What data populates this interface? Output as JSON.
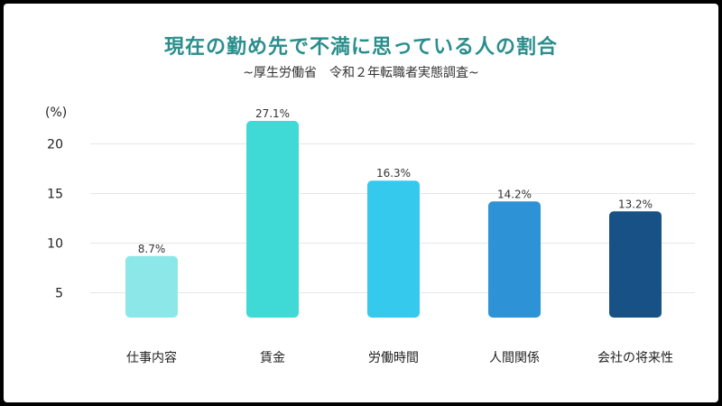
{
  "chart_data": {
    "type": "bar",
    "title": "現在の勤め先で不満に思っている人の割合",
    "subtitle": "~厚生労働省　令和２年転職者実態調査~",
    "ylabel": "(%)",
    "ylim": [
      2.5,
      22.5
    ],
    "yticks": [
      5,
      10,
      15,
      20
    ],
    "grid": true,
    "categories": [
      "仕事内容",
      "賃金",
      "労働時間",
      "人間関係",
      "会社の将来性"
    ],
    "values": [
      8.7,
      27.1,
      16.3,
      14.2,
      13.2
    ],
    "data_labels": [
      "8.7%",
      "27.1%",
      "16.3%",
      "14.2%",
      "13.2%"
    ],
    "colors": [
      "#8ce8e8",
      "#3fd9d6",
      "#36c9ee",
      "#2e92d6",
      "#175185"
    ]
  }
}
